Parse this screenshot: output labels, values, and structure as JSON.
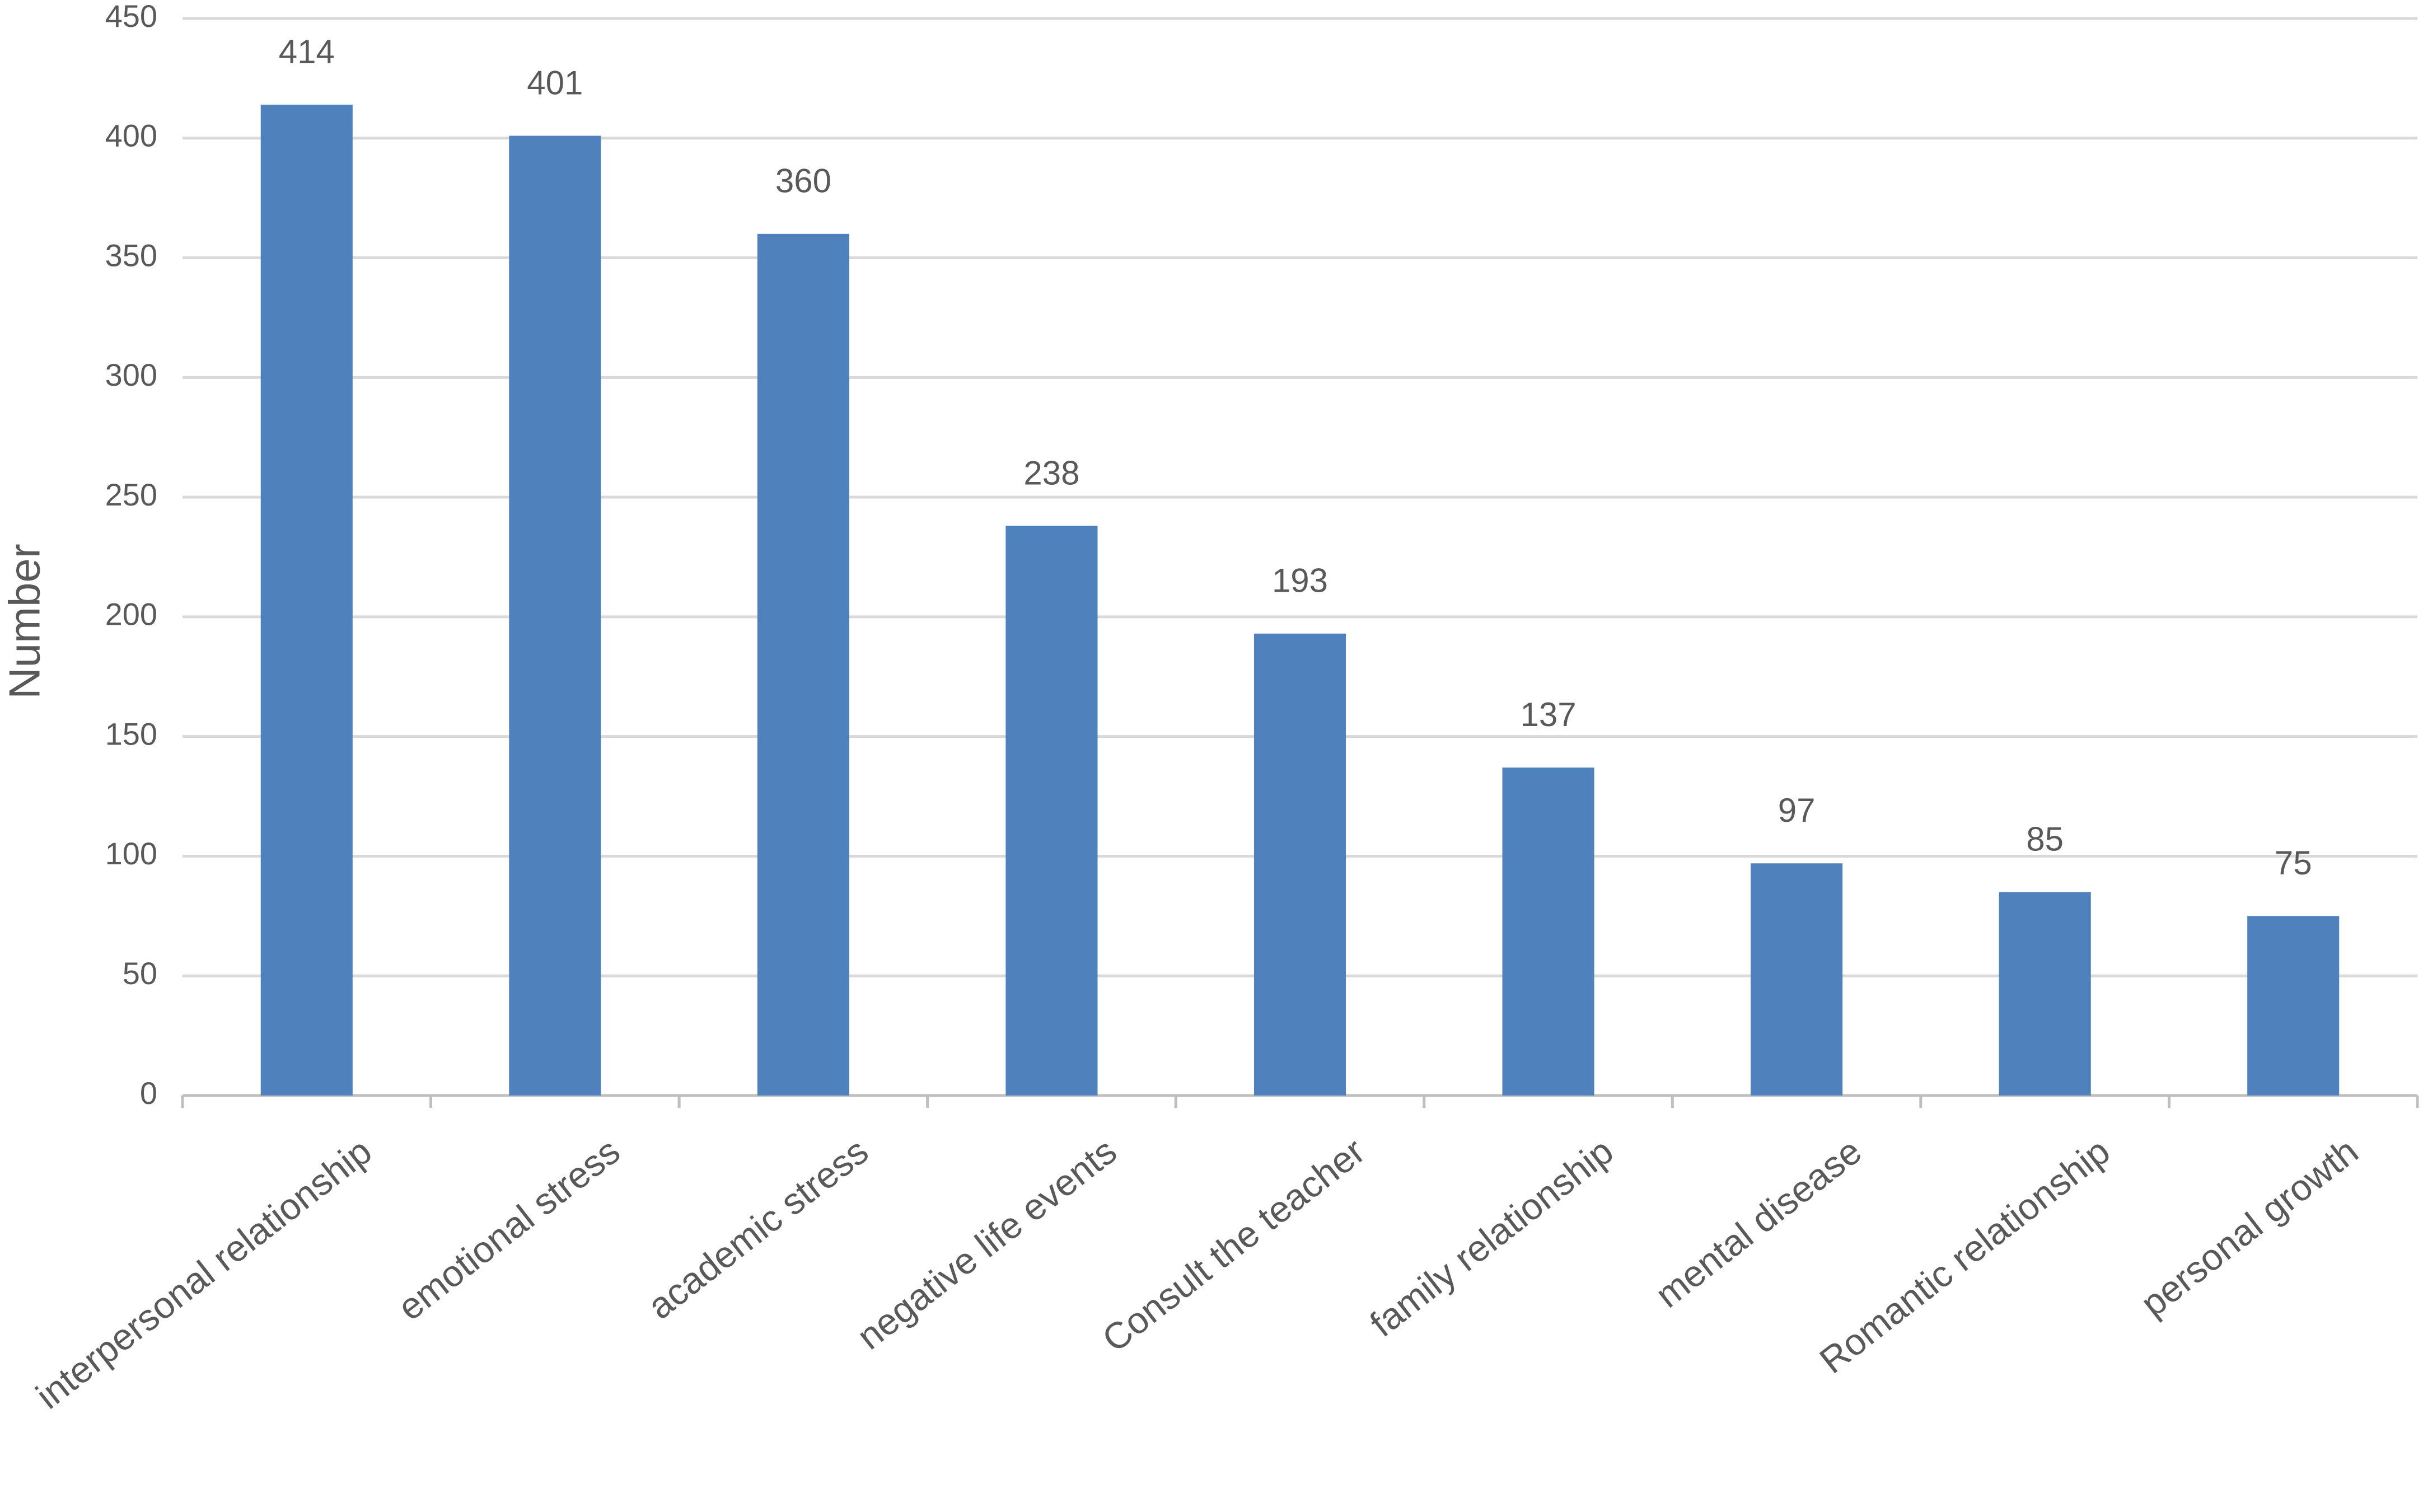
{
  "chart_data": {
    "type": "bar",
    "y_label": "Number",
    "categories": [
      "interpersonal relationship",
      "emotional stress",
      "academic stress",
      "negative life events",
      "Consult the teacher",
      "family relationship",
      "mental disease",
      "Romantic relationship",
      "personal growth"
    ],
    "values": [
      414,
      401,
      360,
      238,
      193,
      137,
      97,
      85,
      75
    ],
    "color": "#4f81bd",
    "ylim": [
      0,
      450
    ],
    "yticks": [
      0,
      50,
      100,
      150,
      200,
      250,
      300,
      350,
      400,
      450
    ],
    "grid": true
  }
}
